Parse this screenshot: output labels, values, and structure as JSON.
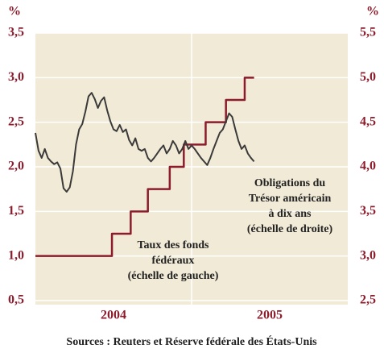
{
  "chart_data": {
    "type": "line",
    "ylabel": "%",
    "y2label": "%",
    "categories": [
      "2004",
      "2005"
    ],
    "xlim": [
      2004,
      2006
    ],
    "ylim": [
      0.5,
      3.5
    ],
    "yticks": [
      {
        "value": 0.5,
        "label": "0,5"
      },
      {
        "value": 1,
        "label": "1,0"
      },
      {
        "value": 1.5,
        "label": "1,5"
      },
      {
        "value": 2,
        "label": "2,0"
      },
      {
        "value": 2.5,
        "label": "2,5"
      },
      {
        "value": 3,
        "label": "3,0"
      },
      {
        "value": 3.5,
        "label": "3,5"
      }
    ],
    "y2lim": [
      2.5,
      5.5
    ],
    "y2ticks": [
      {
        "value": 2.5,
        "label": "2,5"
      },
      {
        "value": 3,
        "label": "3,0"
      },
      {
        "value": 3.5,
        "label": "3,5"
      },
      {
        "value": 4,
        "label": "4,0"
      },
      {
        "value": 4.5,
        "label": "4,5"
      },
      {
        "value": 5,
        "label": "5,0"
      },
      {
        "value": 5.5,
        "label": "5,5"
      }
    ],
    "grid": true,
    "series": [
      {
        "name": "Taux des fonds fédéraux",
        "color": "#8c1c2c",
        "step": "post",
        "axis": "y",
        "x": [
          2004.0,
          2004.49,
          2004.61,
          2004.72,
          2004.86,
          2004.95,
          2005.09,
          2005.22,
          2005.34,
          2005.4
        ],
        "values": [
          1,
          1.25,
          1.5,
          1.75,
          2,
          2.25,
          2.5,
          2.75,
          3,
          3
        ]
      },
      {
        "name": "Obligations du Trésor américain à dix ans",
        "color": "#3a3a3a",
        "axis": "y2",
        "x": [
          2004.0,
          2004.02,
          2004.04,
          2004.06,
          2004.08,
          2004.1,
          2004.12,
          2004.14,
          2004.16,
          2004.18,
          2004.2,
          2004.22,
          2004.24,
          2004.26,
          2004.28,
          2004.3,
          2004.32,
          2004.34,
          2004.36,
          2004.38,
          2004.4,
          2004.42,
          2004.44,
          2004.46,
          2004.48,
          2004.5,
          2004.52,
          2004.54,
          2004.56,
          2004.58,
          2004.6,
          2004.62,
          2004.64,
          2004.66,
          2004.68,
          2004.7,
          2004.72,
          2004.74,
          2004.76,
          2004.78,
          2004.8,
          2004.82,
          2004.84,
          2004.86,
          2004.88,
          2004.9,
          2004.92,
          2004.94,
          2004.96,
          2004.98,
          2005.0,
          2005.02,
          2005.04,
          2005.06,
          2005.08,
          2005.1,
          2005.12,
          2005.14,
          2005.16,
          2005.18,
          2005.2,
          2005.22,
          2005.24,
          2005.26,
          2005.28,
          2005.3,
          2005.32,
          2005.34,
          2005.36,
          2005.38,
          2005.4
        ],
        "values": [
          4.38,
          4.18,
          4.1,
          4.2,
          4.1,
          4.06,
          4.03,
          4.05,
          3.98,
          3.76,
          3.72,
          3.77,
          3.95,
          4.25,
          4.42,
          4.48,
          4.62,
          4.79,
          4.83,
          4.76,
          4.66,
          4.74,
          4.78,
          4.63,
          4.51,
          4.42,
          4.4,
          4.47,
          4.39,
          4.42,
          4.3,
          4.24,
          4.32,
          4.2,
          4.18,
          4.2,
          4.1,
          4.06,
          4.1,
          4.15,
          4.2,
          4.24,
          4.15,
          4.2,
          4.29,
          4.24,
          4.15,
          4.2,
          4.29,
          4.2,
          4.24,
          4.2,
          4.15,
          4.1,
          4.06,
          4.02,
          4.1,
          4.2,
          4.29,
          4.38,
          4.42,
          4.51,
          4.6,
          4.56,
          4.42,
          4.29,
          4.2,
          4.24,
          4.15,
          4.1,
          4.06
        ]
      }
    ],
    "annotations": [
      [
        "Taux des fonds",
        "fédéraux",
        "(échelle de gauche)"
      ],
      [
        "Obligations du",
        "Trésor américain",
        "à dix ans",
        "(échelle de droite)"
      ]
    ],
    "source": "Sources : Reuters et Réserve fédérale des États-Unis"
  }
}
